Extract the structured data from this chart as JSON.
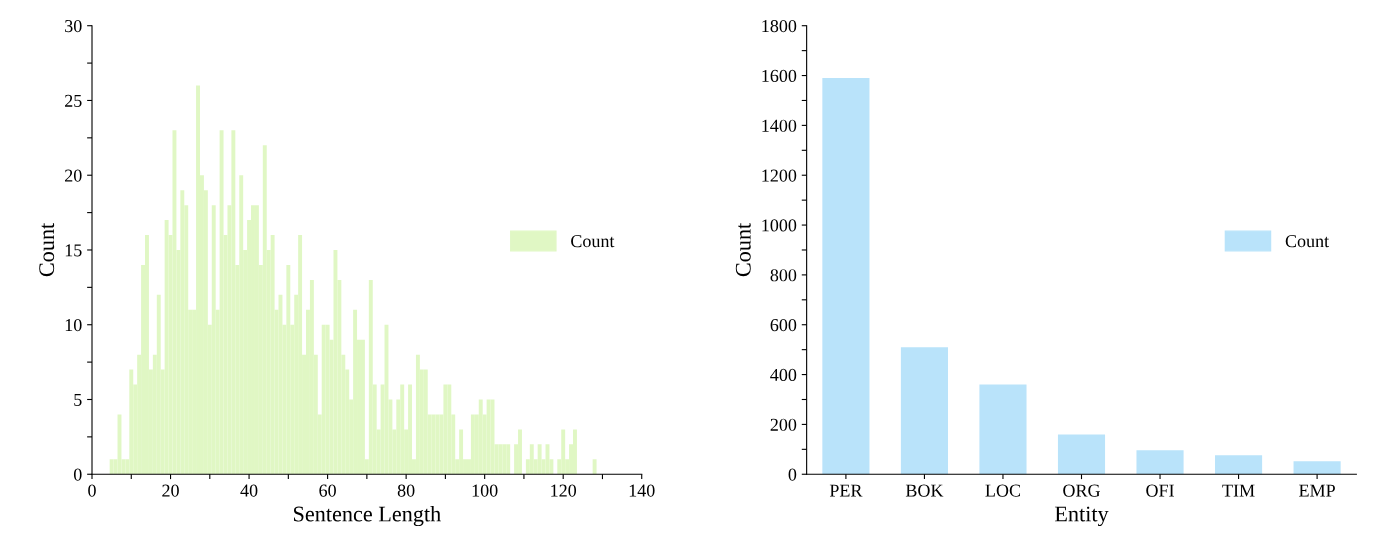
{
  "chart_data": [
    {
      "type": "histogram",
      "xlabel": "Sentence Length",
      "ylabel": "Count",
      "bins": [
        4.5,
        5.5,
        6.5,
        7.5,
        8.5,
        9.5,
        10.5,
        11.5,
        12.5,
        13.5,
        14.5,
        15.5,
        16.5,
        17.5,
        18.5,
        19.5,
        20.5,
        21.5,
        22.5,
        23.5,
        24.5,
        25.5,
        26.5,
        27.5,
        28.5,
        29.5,
        30.5,
        31.5,
        32.5,
        33.5,
        34.5,
        35.5,
        36.5,
        37.5,
        38.5,
        39.5,
        40.5,
        41.5,
        42.5,
        43.5,
        44.5,
        45.5,
        46.5,
        47.5,
        48.5,
        49.5,
        50.5,
        51.5,
        52.5,
        53.5,
        54.5,
        55.5,
        56.5,
        57.5,
        58.5,
        59.5,
        60.5,
        61.5,
        62.5,
        63.5,
        64.5,
        65.5,
        66.5,
        67.5,
        68.5,
        69.5,
        70.5,
        71.5,
        72.5,
        73.5,
        74.5,
        75.5,
        76.5,
        77.5,
        78.5,
        79.5,
        80.5,
        81.5,
        82.5,
        83.5,
        84.5,
        85.5,
        86.5,
        87.5,
        88.5,
        89.5,
        90.5,
        91.5,
        92.5,
        93.5,
        94.5,
        95.5,
        96.5,
        97.5,
        98.5,
        99.5,
        100.5,
        101.5,
        102.5,
        103.5,
        104.5,
        105.5,
        106.5,
        107.5,
        108.5,
        109.5,
        110.5,
        111.5,
        112.5,
        113.5,
        114.5,
        115.5,
        116.5,
        117.5,
        118.5,
        119.5,
        120.5,
        121.5,
        122.5,
        123.5,
        124.5,
        125.5,
        126.5,
        127.5,
        128.5
      ],
      "series": [
        {
          "name": "Count",
          "color": "#e0f7c4",
          "values": [
            1,
            1,
            4,
            1,
            1,
            7,
            6,
            8,
            14,
            16,
            7,
            8,
            12,
            7,
            17,
            16,
            23,
            15,
            19,
            18,
            11,
            11,
            26,
            20,
            19,
            10,
            18,
            11,
            23,
            16,
            18,
            23,
            14,
            20,
            15,
            17,
            18,
            18,
            14,
            22,
            15,
            16,
            11,
            12,
            10,
            14,
            10,
            12,
            16,
            8,
            11,
            13,
            8,
            4,
            10,
            10,
            9,
            15,
            13,
            8,
            7,
            5,
            11,
            9,
            9,
            1,
            13,
            6,
            3,
            6,
            10,
            5,
            3,
            5,
            6,
            3,
            6,
            1,
            8,
            7,
            7,
            4,
            4,
            4,
            4,
            6,
            6,
            4,
            1,
            3,
            1,
            1,
            4,
            4,
            5,
            4,
            5,
            5,
            2,
            2,
            2,
            2,
            0,
            2,
            3,
            0,
            1,
            2,
            1,
            2,
            1,
            2,
            1,
            0,
            1,
            3,
            1,
            2,
            3,
            0,
            0,
            0,
            0,
            1
          ]
        }
      ],
      "xlim": [
        0,
        140
      ],
      "xticks": [
        0,
        {
          "value": 10,
          "label": null
        },
        20,
        {
          "value": 30,
          "label": null
        },
        40,
        {
          "value": 50,
          "label": null
        },
        60,
        {
          "value": 70,
          "label": null
        },
        80,
        {
          "value": 90,
          "label": null
        },
        100,
        {
          "value": 110,
          "label": null
        },
        120,
        {
          "value": 130,
          "label": null
        },
        140
      ],
      "ylim": [
        0,
        30
      ],
      "yticks": [
        0,
        {
          "value": 2.5,
          "label": null
        },
        5,
        {
          "value": 7.5,
          "label": null
        },
        10,
        {
          "value": 12.5,
          "label": null
        },
        15,
        {
          "value": 17.5,
          "label": null
        },
        20,
        {
          "value": 22.5,
          "label": null
        },
        25,
        {
          "value": 27.5,
          "label": null
        },
        30
      ],
      "legend": "right",
      "grid": false
    },
    {
      "type": "bar",
      "xlabel": "Entity",
      "ylabel": "Count",
      "categories": [
        "PER",
        "BOK",
        "LOC",
        "ORG",
        "OFI",
        "TIM",
        "EMP"
      ],
      "series": [
        {
          "name": "Count",
          "color": "#b9e3fa",
          "values": [
            1590,
            510,
            360,
            160,
            96,
            76,
            52
          ]
        }
      ],
      "ylim": [
        0,
        1800
      ],
      "yticks": [
        0,
        {
          "value": 100,
          "label": null
        },
        200,
        {
          "value": 300,
          "label": null
        },
        400,
        {
          "value": 500,
          "label": null
        },
        600,
        {
          "value": 700,
          "label": null
        },
        800,
        {
          "value": 900,
          "label": null
        },
        1000,
        {
          "value": 1100,
          "label": null
        },
        1200,
        {
          "value": 1300,
          "label": null
        },
        1400,
        {
          "value": 1500,
          "label": null
        },
        1600,
        {
          "value": 1700,
          "label": null
        },
        1800
      ],
      "legend": "right",
      "grid": false
    }
  ]
}
